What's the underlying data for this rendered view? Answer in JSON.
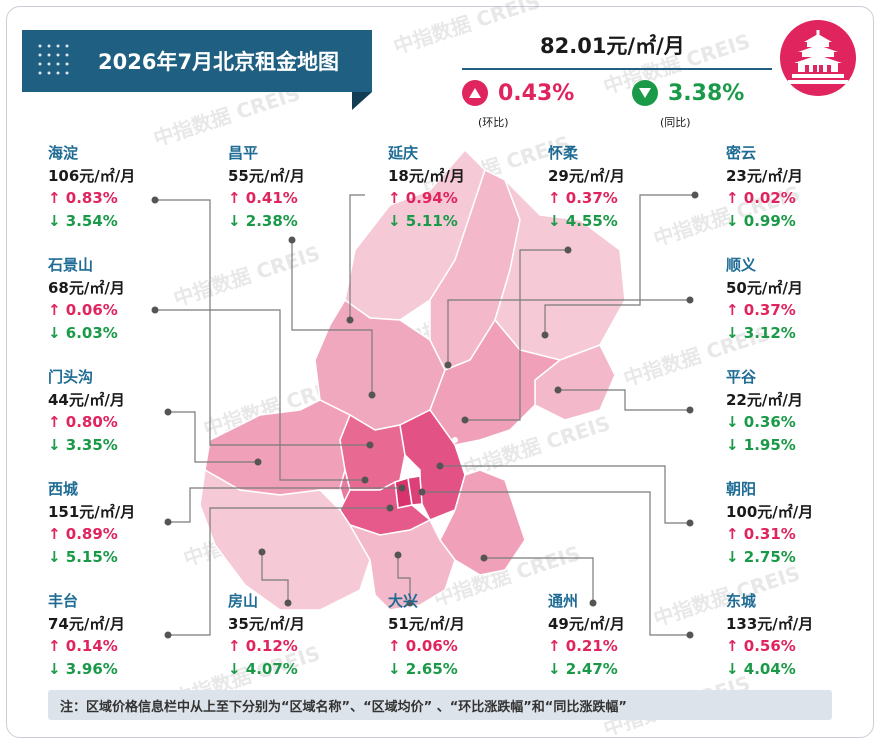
{
  "title": "2026年7月北京租金地图",
  "summary": {
    "avg_price": "82.01元/㎡/月",
    "mom": {
      "value": "0.43%",
      "direction": "up",
      "caption": "(环比)"
    },
    "yoy": {
      "value": "3.38%",
      "direction": "down",
      "caption": "(同比)"
    }
  },
  "colors": {
    "banner": "#1e5f82",
    "up": "#e0245e",
    "down": "#1a9a48",
    "district_name": "#1e6b94",
    "icon_bg": "#e0245e"
  },
  "icon": "temple-of-heaven-icon",
  "districts": [
    {
      "name": "海淀",
      "price": "106元/㎡/月",
      "mom": "↑ 0.83%",
      "yoy": "↓ 3.54%"
    },
    {
      "name": "昌平",
      "price": "55元/㎡/月",
      "mom": "↑ 0.41%",
      "yoy": "↓ 2.38%"
    },
    {
      "name": "延庆",
      "price": "18元/㎡/月",
      "mom": "↑ 0.94%",
      "yoy": "↓ 5.11%"
    },
    {
      "name": "怀柔",
      "price": "29元/㎡/月",
      "mom": "↑ 0.37%",
      "yoy": "↓ 4.55%"
    },
    {
      "name": "密云",
      "price": "23元/㎡/月",
      "mom": "↑ 0.02%",
      "yoy": "↓ 0.99%"
    },
    {
      "name": "石景山",
      "price": "68元/㎡/月",
      "mom": "↑ 0.06%",
      "yoy": "↓ 6.03%"
    },
    {
      "name": "顺义",
      "price": "50元/㎡/月",
      "mom": "↑ 0.37%",
      "yoy": "↓ 3.12%"
    },
    {
      "name": "门头沟",
      "price": "44元/㎡/月",
      "mom": "↑ 0.80%",
      "yoy": "↓ 3.35%"
    },
    {
      "name": "平谷",
      "price": "22元/㎡/月",
      "mom": "↓ 0.36%",
      "yoy": "↓ 1.95%"
    },
    {
      "name": "西城",
      "price": "151元/㎡/月",
      "mom": "↑ 0.89%",
      "yoy": "↓ 5.15%"
    },
    {
      "name": "朝阳",
      "price": "100元/㎡/月",
      "mom": "↑ 0.31%",
      "yoy": "↓ 2.75%"
    },
    {
      "name": "丰台",
      "price": "74元/㎡/月",
      "mom": "↑ 0.14%",
      "yoy": "↓ 3.96%"
    },
    {
      "name": "房山",
      "price": "35元/㎡/月",
      "mom": "↑ 0.12%",
      "yoy": "↓ 4.07%"
    },
    {
      "name": "大兴",
      "price": "51元/㎡/月",
      "mom": "↑ 0.06%",
      "yoy": "↓ 2.65%"
    },
    {
      "name": "通州",
      "price": "49元/㎡/月",
      "mom": "↑ 0.21%",
      "yoy": "↓ 2.47%"
    },
    {
      "name": "东城",
      "price": "133元/㎡/月",
      "mom": "↑ 0.56%",
      "yoy": "↓ 4.04%"
    }
  ],
  "chart_data": {
    "type": "table",
    "title": "2026年7月北京租金地图",
    "columns": [
      "区域名称",
      "区域均价",
      "环比涨跌幅",
      "同比涨跌幅"
    ],
    "rows": [
      [
        "海淀",
        106,
        0.83,
        -3.54
      ],
      [
        "昌平",
        55,
        0.41,
        -2.38
      ],
      [
        "延庆",
        18,
        0.94,
        -5.11
      ],
      [
        "怀柔",
        29,
        0.37,
        -4.55
      ],
      [
        "密云",
        23,
        0.02,
        -0.99
      ],
      [
        "石景山",
        68,
        0.06,
        -6.03
      ],
      [
        "顺义",
        50,
        0.37,
        -3.12
      ],
      [
        "门头沟",
        44,
        0.8,
        -3.35
      ],
      [
        "平谷",
        22,
        -0.36,
        -1.95
      ],
      [
        "西城",
        151,
        0.89,
        -5.15
      ],
      [
        "朝阳",
        100,
        0.31,
        -2.75
      ],
      [
        "丰台",
        74,
        0.14,
        -3.96
      ],
      [
        "房山",
        35,
        0.12,
        -4.07
      ],
      [
        "大兴",
        51,
        0.06,
        -2.65
      ],
      [
        "通州",
        49,
        0.21,
        -2.47
      ],
      [
        "东城",
        133,
        0.56,
        -4.04
      ]
    ]
  },
  "note": "注：区域价格信息栏中从上至下分别为“区域名称”、“区域均价” 、“环比涨跌幅”和“同比涨跌幅”",
  "watermark": "中指数据 CREIS"
}
